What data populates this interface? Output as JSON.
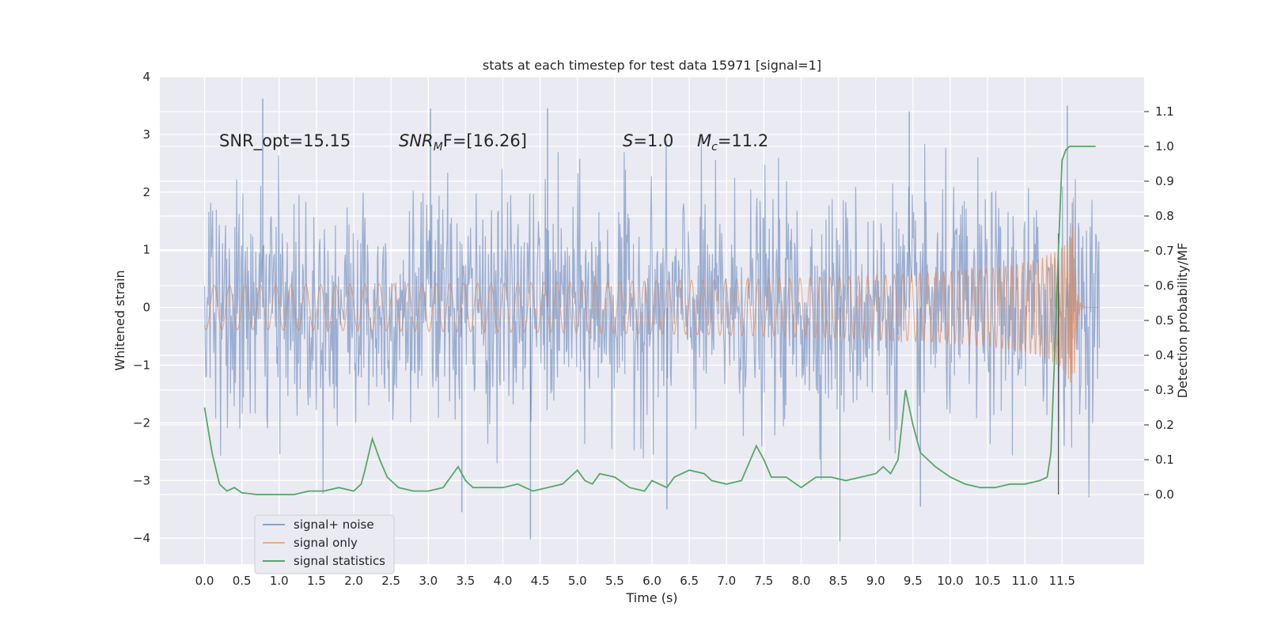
{
  "chart_data": {
    "type": "line",
    "title": "stats at each timestep for test data 15971 [signal=1]",
    "xlabel": "Time (s)",
    "ylabel": "Whitened strain",
    "ylabel_right": "Detection probability/MF",
    "xlim": [
      -0.6,
      12.6
    ],
    "ylim": [
      -4.45,
      4.0
    ],
    "ylim_right": [
      -0.2,
      1.2
    ],
    "x_ticks": [
      "0.0",
      "0.5",
      "1.0",
      "1.5",
      "2.0",
      "2.5",
      "3.0",
      "3.5",
      "4.0",
      "4.5",
      "5.0",
      "5.5",
      "6.0",
      "6.5",
      "7.0",
      "7.5",
      "8.0",
      "8.5",
      "9.0",
      "9.5",
      "10.0",
      "10.5",
      "11.0",
      "11.5"
    ],
    "y_ticks": [
      "−4",
      "−3",
      "−2",
      "−1",
      "0",
      "1",
      "2",
      "3",
      "4"
    ],
    "y_ticks_right": [
      "0.0",
      "0.1",
      "0.2",
      "0.3",
      "0.4",
      "0.5",
      "0.6",
      "0.7",
      "0.8",
      "0.9",
      "1.0",
      "1.1"
    ],
    "grid": true,
    "legend_position": "lower-left",
    "annotations": {
      "snr_opt": "SNR_opt=15.15",
      "snr_mf_base": "SNR",
      "snr_mf_sub": "M",
      "snr_mf_rest": "F=[16.26]",
      "s_symbol": "S",
      "s_value": "=1.0",
      "mc_symbol": "M",
      "mc_sub": "c",
      "mc_value": "=11.2"
    },
    "detection_time": 11.45,
    "series": [
      {
        "name": "signal+ noise",
        "color": "#4c72b0",
        "kind": "noise band",
        "x_range": [
          0.0,
          12.0
        ],
        "typical_range": [
          -1.6,
          1.6
        ],
        "peaks_high": [
          [
            0.78,
            3.62
          ],
          [
            3.03,
            3.45
          ],
          [
            4.6,
            3.45
          ],
          [
            9.45,
            3.4
          ],
          [
            11.57,
            3.5
          ]
        ],
        "peaks_low": [
          [
            4.37,
            -4.02
          ],
          [
            8.52,
            -4.05
          ],
          [
            3.45,
            -3.55
          ],
          [
            6.2,
            -3.5
          ],
          [
            9.6,
            -3.45
          ]
        ]
      },
      {
        "name": "signal only",
        "color": "#dd8452",
        "kind": "chirp",
        "x_range": [
          0.0,
          12.0
        ],
        "merger_time": 11.65,
        "peak_amplitude": 1.9
      },
      {
        "name": "signal statistics",
        "color": "#55a868",
        "kind": "right-axis line",
        "x": [
          0.0,
          0.1,
          0.2,
          0.3,
          0.4,
          0.5,
          0.7,
          1.0,
          1.2,
          1.4,
          1.6,
          1.8,
          2.0,
          2.1,
          2.15,
          2.25,
          2.35,
          2.45,
          2.6,
          2.8,
          3.0,
          3.2,
          3.3,
          3.4,
          3.5,
          3.6,
          3.8,
          4.0,
          4.2,
          4.4,
          4.6,
          4.8,
          5.0,
          5.1,
          5.2,
          5.3,
          5.5,
          5.7,
          5.9,
          6.0,
          6.2,
          6.3,
          6.5,
          6.7,
          6.8,
          7.0,
          7.2,
          7.4,
          7.5,
          7.6,
          7.8,
          8.0,
          8.2,
          8.4,
          8.6,
          8.8,
          9.0,
          9.1,
          9.2,
          9.3,
          9.4,
          9.5,
          9.6,
          9.8,
          10.0,
          10.2,
          10.4,
          10.6,
          10.8,
          11.0,
          11.2,
          11.3,
          11.35,
          11.4,
          11.45,
          11.5,
          11.55,
          11.6,
          11.7,
          11.8,
          11.9,
          11.95
        ],
        "values": [
          0.25,
          0.12,
          0.03,
          0.01,
          0.02,
          0.005,
          0.0,
          0.0,
          0.0,
          0.01,
          0.01,
          0.02,
          0.01,
          0.03,
          0.07,
          0.16,
          0.1,
          0.05,
          0.02,
          0.01,
          0.01,
          0.02,
          0.05,
          0.08,
          0.04,
          0.02,
          0.02,
          0.02,
          0.03,
          0.01,
          0.02,
          0.03,
          0.07,
          0.04,
          0.03,
          0.06,
          0.05,
          0.02,
          0.01,
          0.04,
          0.02,
          0.05,
          0.07,
          0.06,
          0.04,
          0.03,
          0.04,
          0.14,
          0.1,
          0.05,
          0.05,
          0.02,
          0.05,
          0.05,
          0.04,
          0.05,
          0.06,
          0.08,
          0.06,
          0.1,
          0.3,
          0.2,
          0.12,
          0.08,
          0.05,
          0.03,
          0.02,
          0.02,
          0.03,
          0.03,
          0.04,
          0.05,
          0.12,
          0.4,
          0.7,
          0.96,
          0.99,
          1.0,
          1.0,
          1.0,
          1.0,
          1.0
        ]
      }
    ]
  }
}
